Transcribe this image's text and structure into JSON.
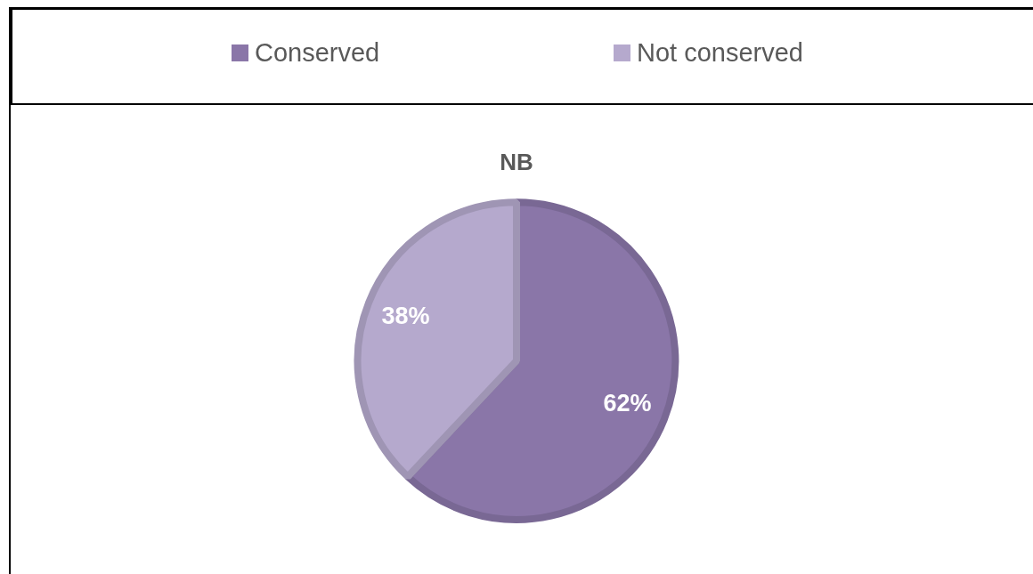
{
  "chart_data": {
    "type": "pie",
    "title": "NB",
    "categories": [
      "Conserved",
      "Not conserved"
    ],
    "values": [
      62,
      38
    ],
    "value_labels": [
      "62%",
      "38%"
    ],
    "colors": [
      "#8a76a8",
      "#b5a9cd"
    ],
    "legend": "top"
  }
}
